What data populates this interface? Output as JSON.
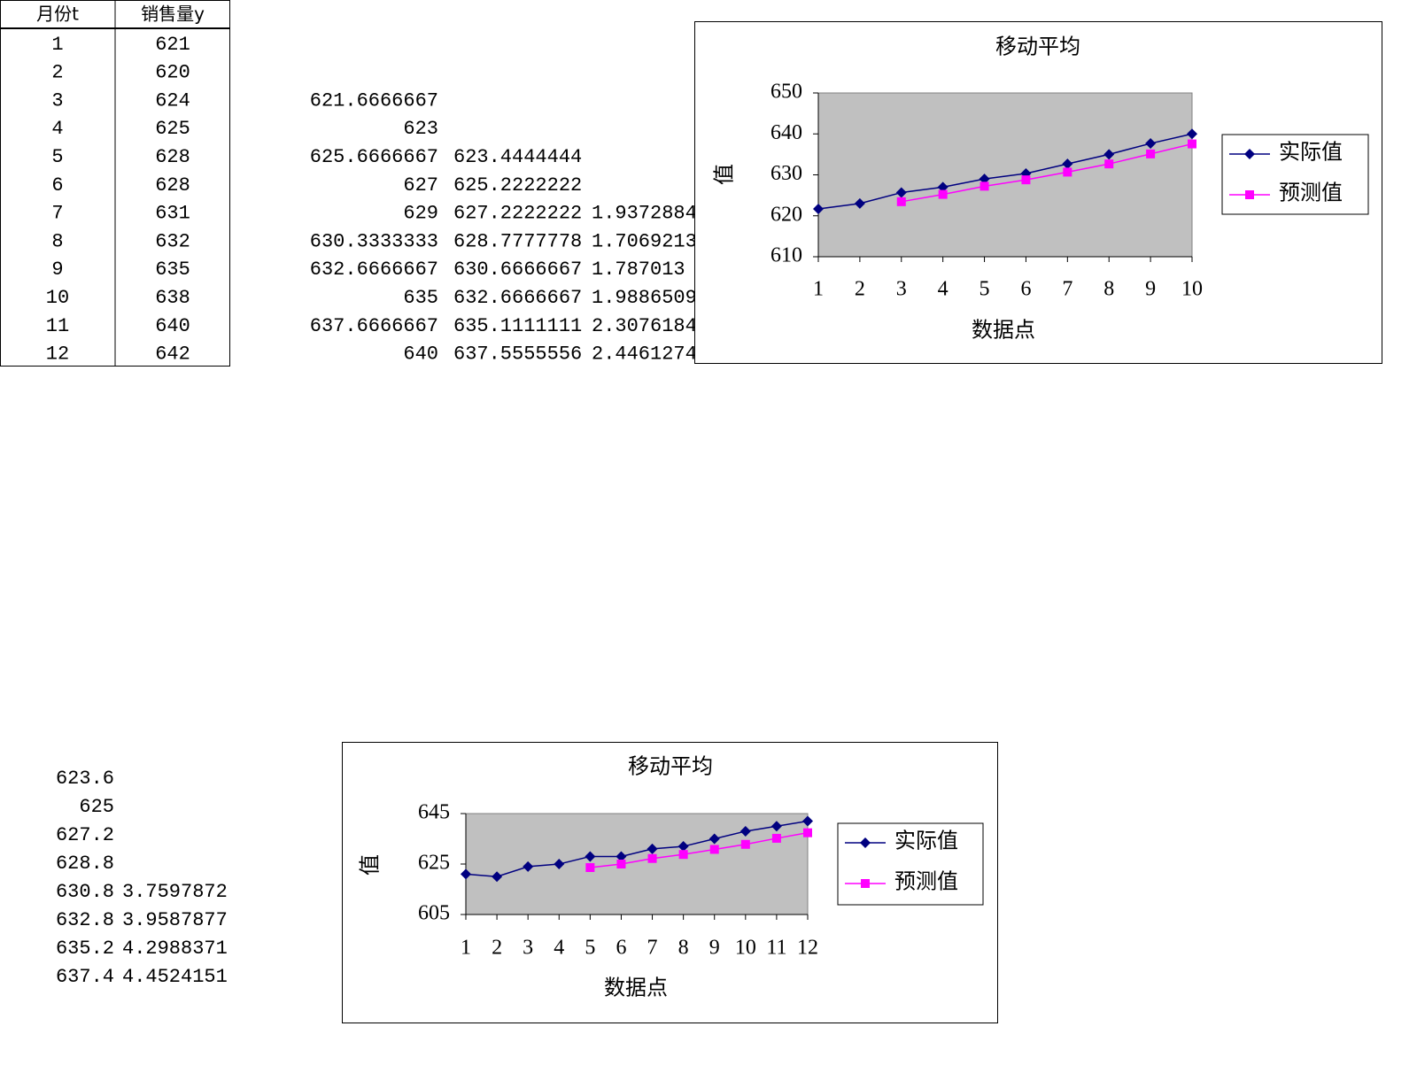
{
  "table": {
    "header": [
      "月份t",
      "销售量y"
    ],
    "rows": [
      [
        1,
        621
      ],
      [
        2,
        620
      ],
      [
        3,
        624
      ],
      [
        4,
        625
      ],
      [
        5,
        628
      ],
      [
        6,
        628
      ],
      [
        7,
        631
      ],
      [
        8,
        632
      ],
      [
        9,
        635
      ],
      [
        10,
        638
      ],
      [
        11,
        640
      ],
      [
        12,
        642
      ]
    ]
  },
  "moving_average_3": [
    null,
    null,
    621.6666667,
    623,
    625.6666667,
    627,
    629,
    630.3333333,
    632.6666667,
    635,
    637.6666667,
    640
  ],
  "double_average_3": [
    null,
    null,
    null,
    null,
    623.4444444,
    625.2222222,
    627.2222222,
    628.7777778,
    630.6666667,
    632.6666667,
    635.1111111,
    637.5555556
  ],
  "error_3": [
    null,
    null,
    null,
    null,
    null,
    null,
    1.9372884,
    1.7069213,
    1.787013,
    1.9886509,
    2.3076184,
    2.4461274
  ],
  "moving_average_5": [
    623.6,
    625,
    627.2,
    628.8,
    630.8,
    632.8,
    635.2,
    637.4
  ],
  "error_5": [
    null,
    null,
    null,
    null,
    3.7597872,
    3.9587877,
    4.2988371,
    4.4524151
  ],
  "chart_data": [
    {
      "type": "line",
      "title": "移动平均",
      "x_label": "数据点",
      "y_label": "值",
      "categories": [
        1,
        2,
        3,
        4,
        5,
        6,
        7,
        8,
        9,
        10
      ],
      "series": [
        {
          "name": "实际值",
          "color": "#000080",
          "marker": "diamond",
          "values": [
            621.6666667,
            623,
            625.6666667,
            627,
            629,
            630.3333333,
            632.6666667,
            635,
            637.6666667,
            640
          ]
        },
        {
          "name": "预测值",
          "color": "#ff00ff",
          "marker": "square",
          "values": [
            null,
            null,
            623.4444444,
            625.2222222,
            627.2222222,
            628.7777778,
            630.6666667,
            632.6666667,
            635.1111111,
            637.5555556
          ]
        }
      ],
      "ylim": [
        610,
        650
      ],
      "yticks": [
        610,
        620,
        630,
        640,
        650
      ],
      "plot_background": "#c0c0c0",
      "legend": "right"
    },
    {
      "type": "line",
      "title": "移动平均",
      "x_label": "数据点",
      "y_label": "值",
      "categories": [
        1,
        2,
        3,
        4,
        5,
        6,
        7,
        8,
        9,
        10,
        11,
        12
      ],
      "series": [
        {
          "name": "实际值",
          "color": "#000080",
          "marker": "diamond",
          "values": [
            621,
            620,
            624,
            625,
            628,
            628,
            631,
            632,
            635,
            638,
            640,
            642
          ]
        },
        {
          "name": "预测值",
          "color": "#ff00ff",
          "marker": "square",
          "values": [
            null,
            null,
            null,
            null,
            623.6,
            625,
            627.2,
            628.8,
            630.8,
            632.8,
            635.2,
            637.4
          ]
        }
      ],
      "ylim": [
        605,
        645
      ],
      "yticks": [
        605,
        625,
        645
      ],
      "plot_background": "#c0c0c0",
      "legend": "right"
    }
  ]
}
